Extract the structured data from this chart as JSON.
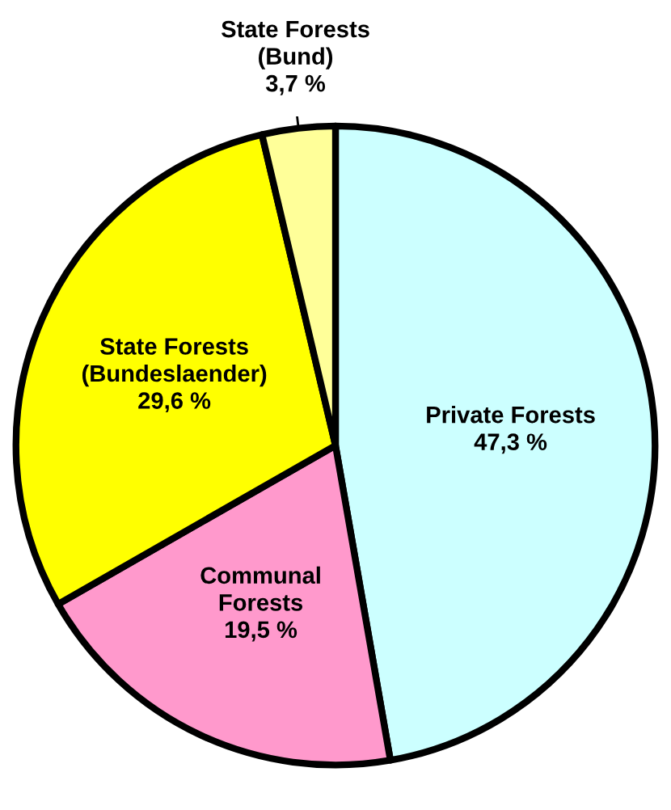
{
  "chart_data": {
    "type": "pie",
    "categories": [
      "Private Forests",
      "Communal\nForests",
      "State Forests\n(Bundeslaender)",
      "State Forests\n(Bund)"
    ],
    "values": [
      47.3,
      19.5,
      29.6,
      3.7
    ],
    "colors": [
      "#ccffff",
      "#ff99cc",
      "#ffff00",
      "#ffff99"
    ],
    "value_labels": [
      "47,3 %",
      "19,5 %",
      "29,6 %",
      "3,7 %"
    ],
    "legend": false
  }
}
